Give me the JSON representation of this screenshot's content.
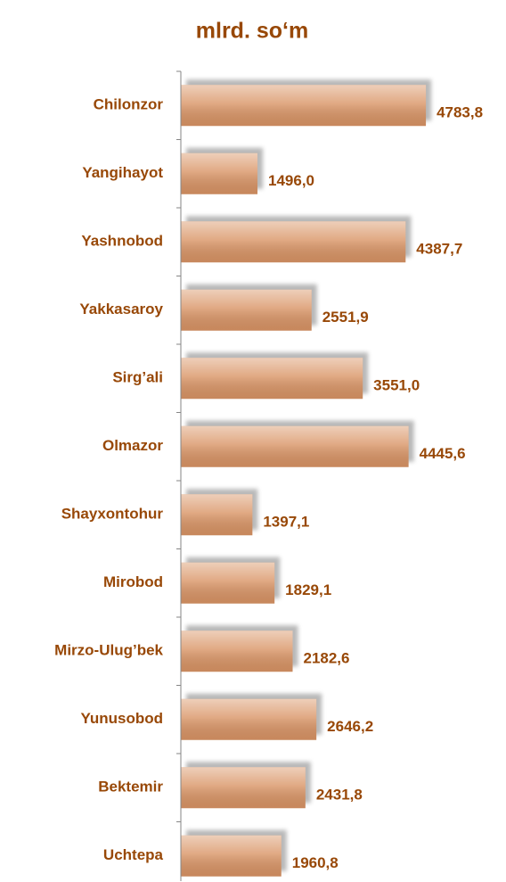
{
  "chart_data": {
    "type": "hbar",
    "title": "mlrd. so‘m",
    "categories": [
      "Chilonzor",
      "Yangihayot",
      "Yashnobod",
      "Yakkasaroy",
      "Sirg’ali",
      "Olmazor",
      "Shayxontohur",
      "Mirobod",
      "Mirzo-Ulug’bek",
      "Yunusobod",
      "Bektemir",
      "Uchtepa"
    ],
    "values": [
      4783.8,
      1496.0,
      4387.7,
      2551.9,
      3551.0,
      4445.6,
      1397.1,
      1829.1,
      2182.6,
      2646.2,
      2431.8,
      1960.8
    ],
    "value_labels": [
      "4783,8",
      "1496,0",
      "4387,7",
      "2551,9",
      "3551,0",
      "4445,6",
      "1397,1",
      "1829,1",
      "2182,6",
      "2646,2",
      "2431,8",
      "1960,8"
    ],
    "color": "#d99465",
    "xlim": [
      0,
      6000
    ]
  }
}
